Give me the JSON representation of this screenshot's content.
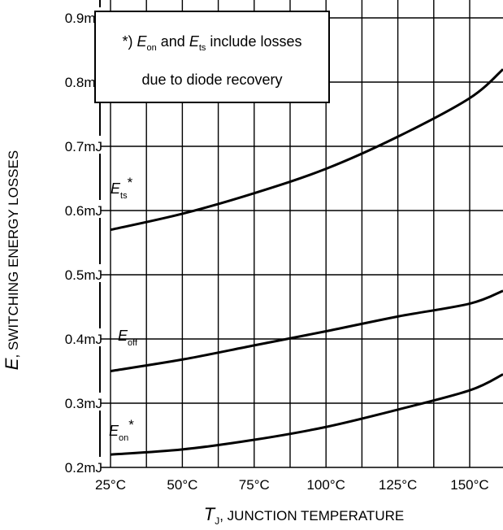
{
  "chart_data": {
    "type": "line",
    "xlabel": {
      "symbol": "T",
      "sub": "J",
      "rest": ", JUNCTION TEMPERATURE"
    },
    "ylabel": {
      "symbol": "E",
      "rest": ", SWITCHING ENERGY LOSSES"
    },
    "xlim": [
      0,
      175
    ],
    "ylim": [
      0.2,
      0.9
    ],
    "x_ticks": [
      {
        "value": 25,
        "label": "25°C"
      },
      {
        "value": 50,
        "label": "50°C"
      },
      {
        "value": 75,
        "label": "75°C"
      },
      {
        "value": 100,
        "label": "100°C"
      },
      {
        "value": 125,
        "label": "125°C"
      },
      {
        "value": 150,
        "label": "150°C"
      }
    ],
    "y_ticks": [
      {
        "value": 0.2,
        "label": "0.2mJ"
      },
      {
        "value": 0.3,
        "label": "0.3mJ"
      },
      {
        "value": 0.4,
        "label": "0.4mJ"
      },
      {
        "value": 0.5,
        "label": "0.5mJ"
      },
      {
        "value": 0.6,
        "label": "0.6mJ"
      },
      {
        "value": 0.7,
        "label": "0.7mJ"
      },
      {
        "value": 0.8,
        "label": "0.8mJ"
      },
      {
        "value": 0.9,
        "label": "0.9mJ"
      }
    ],
    "grid": true,
    "series": [
      {
        "name": "Ets",
        "symbol": "E",
        "sub": "ts",
        "star": "*",
        "x": [
          25,
          50,
          75,
          100,
          125,
          150,
          175
        ],
        "y": [
          0.57,
          0.595,
          0.627,
          0.665,
          0.715,
          0.775,
          0.82
        ]
      },
      {
        "name": "Eoff",
        "symbol": "E",
        "sub": "off",
        "star": "",
        "x": [
          25,
          50,
          75,
          100,
          125,
          150,
          175
        ],
        "y": [
          0.35,
          0.368,
          0.39,
          0.412,
          0.435,
          0.455,
          0.475
        ]
      },
      {
        "name": "Eon",
        "symbol": "E",
        "sub": "on",
        "star": "*",
        "x": [
          25,
          50,
          75,
          100,
          125,
          150,
          175
        ],
        "y": [
          0.22,
          0.228,
          0.243,
          0.263,
          0.29,
          0.32,
          0.345
        ]
      }
    ],
    "annotation": {
      "line1": {
        "prefix": "*) ",
        "a_sym": "E",
        "a_sub": "on",
        "mid": " and ",
        "b_sym": "E",
        "b_sub": "ts",
        "suffix": " include losses"
      },
      "line2": "due to diode recovery"
    }
  }
}
